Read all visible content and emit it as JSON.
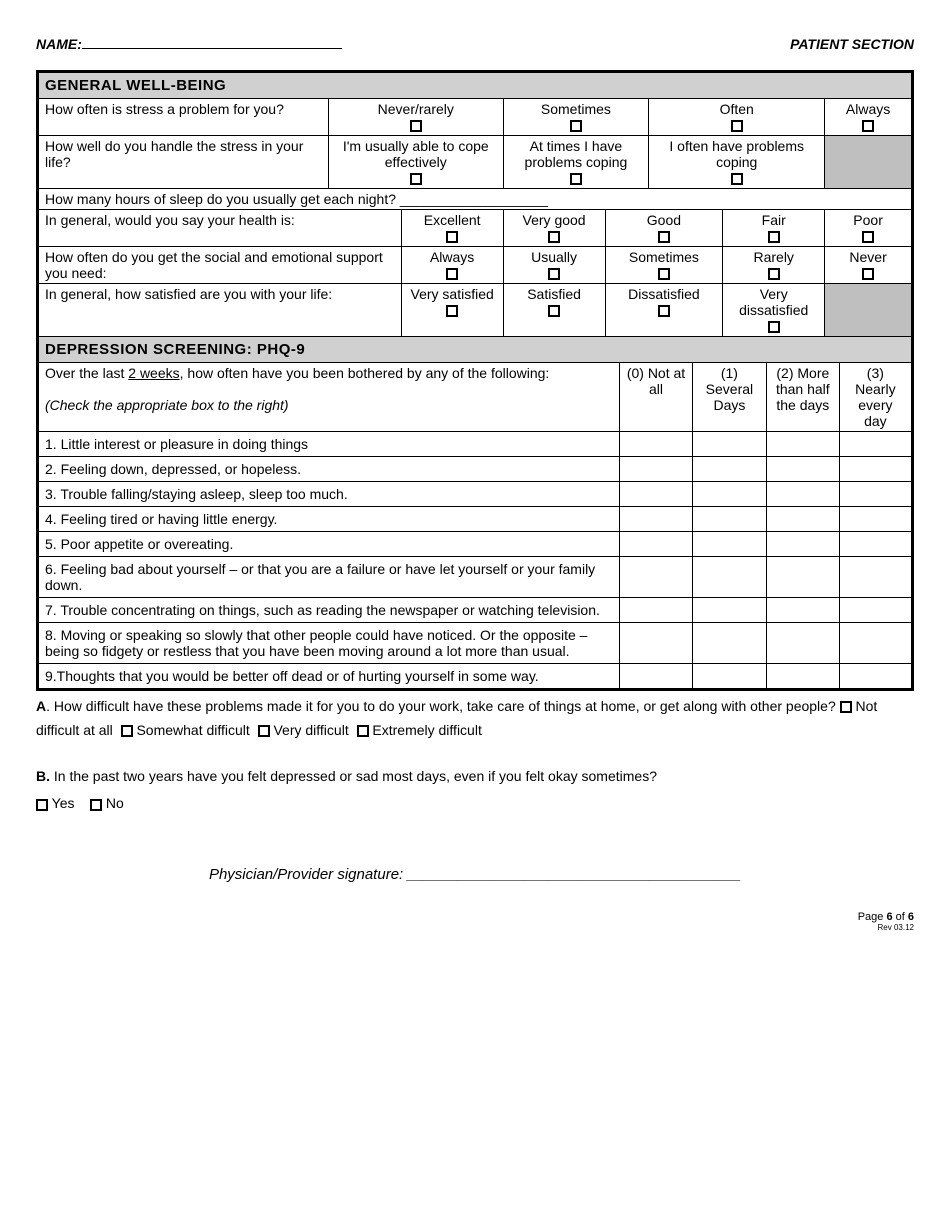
{
  "header": {
    "name_label": "NAME:",
    "patient_section": "PATIENT SECTION"
  },
  "section1": {
    "title": "GENERAL WELL-BEING",
    "q1": {
      "text": "How often is stress a problem for you?",
      "opts": [
        "Never/rarely",
        "Sometimes",
        "Often",
        "Always"
      ]
    },
    "q2": {
      "text": "How well do you handle the stress in your life?",
      "opts": [
        "I'm usually able to cope effectively",
        "At times I have problems coping",
        "I often have problems coping"
      ]
    },
    "q3": {
      "text": "How many hours of sleep do you usually get each night?   ___________________"
    },
    "q4": {
      "text": "In general, would you say your health is:",
      "opts": [
        "Excellent",
        "Very good",
        "Good",
        "Fair",
        "Poor"
      ]
    },
    "q5": {
      "text": "How often do you get the social and emotional support you need:",
      "opts": [
        "Always",
        "Usually",
        "Sometimes",
        "Rarely",
        "Never"
      ]
    },
    "q6": {
      "text": "In general, how satisfied are you with your life:",
      "opts": [
        "Very satisfied",
        "Satisfied",
        "Dissatisfied",
        "Very dissatisfied"
      ]
    }
  },
  "section2": {
    "title": "DEPRESSION SCREENING: PHQ-9",
    "intro_a": "Over the last ",
    "intro_u": "2 weeks",
    "intro_b": ", how often have you been bothered by any of the following:",
    "intro_instr": "(Check the appropriate box to the right)",
    "cols": [
      "(0) Not at all",
      "(1) Several Days",
      "(2) More than half the days",
      "(3) Nearly every day"
    ],
    "items": [
      "1. Little interest or pleasure in doing things",
      "2. Feeling down, depressed, or hopeless.",
      "3. Trouble falling/staying asleep, sleep too much.",
      "4. Feeling tired or having little energy.",
      "5. Poor appetite or overeating.",
      "6. Feeling bad about yourself – or that you are a failure or have let yourself or your family down.",
      "7. Trouble concentrating on things, such as reading the newspaper or watching television.",
      "8. Moving or speaking so slowly that other people could have noticed. Or the opposite – being so fidgety or restless that you have been moving around a lot more than usual.",
      "9.Thoughts that you would be better off dead or of hurting yourself in some way."
    ]
  },
  "followups": {
    "a_label": "A",
    "a_text": ". How difficult have these problems made it for you to do your work, take care of things at home, or get along with other people?  ",
    "a_opts": [
      "Not difficult at all",
      "Somewhat difficult",
      "Very difficult",
      "Extremely difficult"
    ],
    "b_label": "B.",
    "b_text": " In the past two years have you felt depressed or sad most days, even if you felt okay sometimes?",
    "b_opts": [
      "Yes",
      "No"
    ]
  },
  "signature_label": "Physician/Provider signature: ________________________________________",
  "footer": {
    "page": "Page ",
    "num": "6",
    "of": " of ",
    "total": "6",
    "rev": "Rev 03.12"
  },
  "colors": {
    "section_bg": "#d0d0d0",
    "shade_bg": "#bfbfbf",
    "border": "#000000"
  }
}
